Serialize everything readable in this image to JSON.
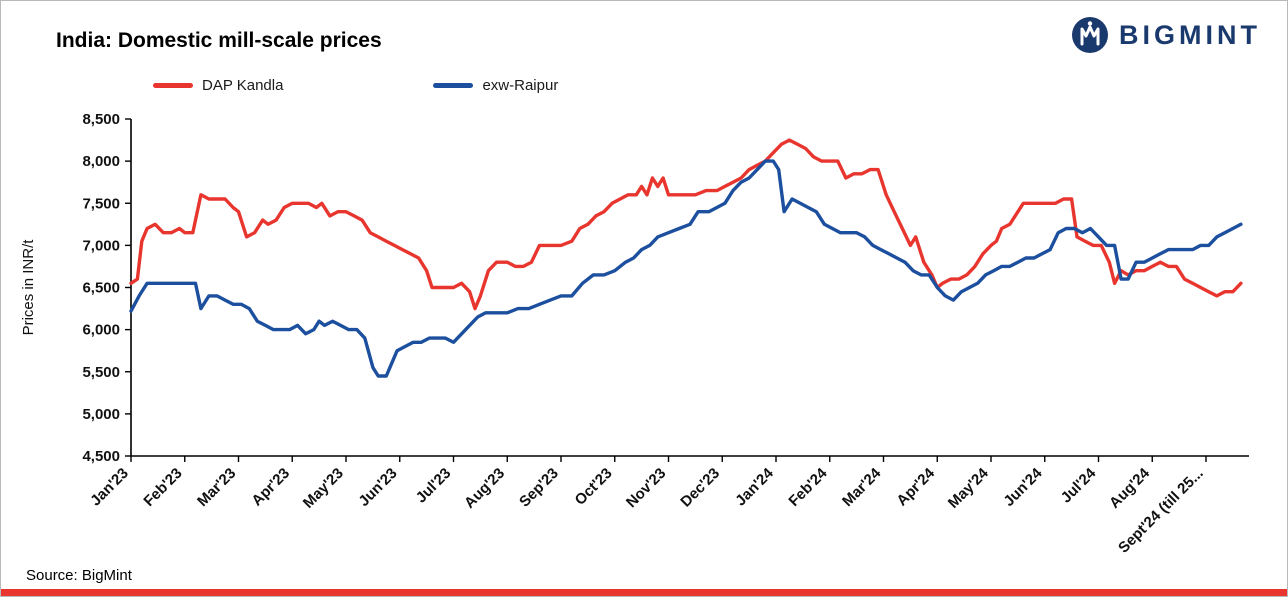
{
  "header": {
    "title": "India: Domestic mill-scale prices"
  },
  "logo": {
    "text": "BIGMINT",
    "color": "#1a3a6e",
    "icon": "bigmint-globe-icon"
  },
  "footer": {
    "source": "Source: BigMint"
  },
  "colors": {
    "dap_red": "#e8352e",
    "raipur_blue": "#1c4f9e",
    "bottom_bar": "#e8352e",
    "axis": "#000000"
  },
  "chart_data": {
    "type": "line",
    "title": "India: Domestic mill-scale prices",
    "xlabel": "",
    "ylabel": "Prices in INR/t",
    "ylim": [
      4500,
      8500
    ],
    "ytick_step": 500,
    "ytick_labels": [
      "4,500",
      "5,000",
      "5,500",
      "6,000",
      "6,500",
      "7,000",
      "7,500",
      "8,000",
      "8,500"
    ],
    "grid": false,
    "legend_position": "top",
    "categories": [
      "Jan'23",
      "Feb'23",
      "Mar'23",
      "Apr'23",
      "May'23",
      "Jun'23",
      "Jul'23",
      "Aug'23",
      "Sep'23",
      "Oct'23",
      "Nov'23",
      "Dec'23",
      "Jan'24",
      "Feb'24",
      "Mar'24",
      "Apr'24",
      "May'24",
      "Jun'24",
      "Jul'24",
      "Aug'24",
      "Sept'24 (till 25..."
    ],
    "x_unit": "months since Jan'23 (fractional = within-month date)",
    "x_axis_max": 20.8,
    "series": [
      {
        "name": "DAP Kandla",
        "color": "#e8352e",
        "points": [
          [
            0,
            6550
          ],
          [
            0.12,
            6600
          ],
          [
            0.2,
            7050
          ],
          [
            0.3,
            7200
          ],
          [
            0.45,
            7250
          ],
          [
            0.6,
            7150
          ],
          [
            0.75,
            7150
          ],
          [
            0.9,
            7200
          ],
          [
            1.0,
            7150
          ],
          [
            1.15,
            7150
          ],
          [
            1.3,
            7600
          ],
          [
            1.45,
            7550
          ],
          [
            1.6,
            7550
          ],
          [
            1.75,
            7550
          ],
          [
            1.9,
            7450
          ],
          [
            2.0,
            7400
          ],
          [
            2.15,
            7100
          ],
          [
            2.3,
            7150
          ],
          [
            2.45,
            7300
          ],
          [
            2.55,
            7250
          ],
          [
            2.7,
            7300
          ],
          [
            2.85,
            7450
          ],
          [
            3.0,
            7500
          ],
          [
            3.15,
            7500
          ],
          [
            3.3,
            7500
          ],
          [
            3.45,
            7450
          ],
          [
            3.55,
            7500
          ],
          [
            3.7,
            7350
          ],
          [
            3.85,
            7400
          ],
          [
            4.0,
            7400
          ],
          [
            4.15,
            7350
          ],
          [
            4.3,
            7300
          ],
          [
            4.45,
            7150
          ],
          [
            4.6,
            7100
          ],
          [
            4.75,
            7050
          ],
          [
            4.9,
            7000
          ],
          [
            5.05,
            6950
          ],
          [
            5.2,
            6900
          ],
          [
            5.35,
            6850
          ],
          [
            5.5,
            6700
          ],
          [
            5.6,
            6500
          ],
          [
            5.8,
            6500
          ],
          [
            6.0,
            6500
          ],
          [
            6.15,
            6550
          ],
          [
            6.3,
            6450
          ],
          [
            6.4,
            6250
          ],
          [
            6.5,
            6400
          ],
          [
            6.65,
            6700
          ],
          [
            6.8,
            6800
          ],
          [
            7.0,
            6800
          ],
          [
            7.15,
            6750
          ],
          [
            7.3,
            6750
          ],
          [
            7.45,
            6800
          ],
          [
            7.6,
            7000
          ],
          [
            7.8,
            7000
          ],
          [
            8.0,
            7000
          ],
          [
            8.2,
            7050
          ],
          [
            8.35,
            7200
          ],
          [
            8.5,
            7250
          ],
          [
            8.65,
            7350
          ],
          [
            8.8,
            7400
          ],
          [
            8.95,
            7500
          ],
          [
            9.1,
            7550
          ],
          [
            9.25,
            7600
          ],
          [
            9.4,
            7600
          ],
          [
            9.5,
            7700
          ],
          [
            9.6,
            7600
          ],
          [
            9.7,
            7800
          ],
          [
            9.8,
            7700
          ],
          [
            9.9,
            7800
          ],
          [
            10.0,
            7600
          ],
          [
            10.15,
            7600
          ],
          [
            10.3,
            7600
          ],
          [
            10.5,
            7600
          ],
          [
            10.7,
            7650
          ],
          [
            10.9,
            7650
          ],
          [
            11.05,
            7700
          ],
          [
            11.2,
            7750
          ],
          [
            11.35,
            7800
          ],
          [
            11.5,
            7900
          ],
          [
            11.65,
            7950
          ],
          [
            11.8,
            8000
          ],
          [
            11.95,
            8100
          ],
          [
            12.1,
            8200
          ],
          [
            12.25,
            8250
          ],
          [
            12.4,
            8200
          ],
          [
            12.55,
            8150
          ],
          [
            12.7,
            8050
          ],
          [
            12.85,
            8000
          ],
          [
            13.0,
            8000
          ],
          [
            13.15,
            8000
          ],
          [
            13.3,
            7800
          ],
          [
            13.45,
            7850
          ],
          [
            13.6,
            7850
          ],
          [
            13.75,
            7900
          ],
          [
            13.9,
            7900
          ],
          [
            14.05,
            7600
          ],
          [
            14.2,
            7400
          ],
          [
            14.35,
            7200
          ],
          [
            14.5,
            7000
          ],
          [
            14.6,
            7100
          ],
          [
            14.75,
            6800
          ],
          [
            14.9,
            6650
          ],
          [
            15.0,
            6500
          ],
          [
            15.1,
            6550
          ],
          [
            15.25,
            6600
          ],
          [
            15.4,
            6600
          ],
          [
            15.55,
            6650
          ],
          [
            15.7,
            6750
          ],
          [
            15.85,
            6900
          ],
          [
            16.0,
            7000
          ],
          [
            16.1,
            7050
          ],
          [
            16.2,
            7200
          ],
          [
            16.35,
            7250
          ],
          [
            16.5,
            7400
          ],
          [
            16.6,
            7500
          ],
          [
            16.75,
            7500
          ],
          [
            16.9,
            7500
          ],
          [
            17.05,
            7500
          ],
          [
            17.2,
            7500
          ],
          [
            17.35,
            7550
          ],
          [
            17.5,
            7550
          ],
          [
            17.6,
            7100
          ],
          [
            17.75,
            7050
          ],
          [
            17.9,
            7000
          ],
          [
            18.05,
            7000
          ],
          [
            18.2,
            6800
          ],
          [
            18.3,
            6550
          ],
          [
            18.42,
            6700
          ],
          [
            18.55,
            6650
          ],
          [
            18.7,
            6700
          ],
          [
            18.85,
            6700
          ],
          [
            19.0,
            6750
          ],
          [
            19.15,
            6800
          ],
          [
            19.3,
            6750
          ],
          [
            19.45,
            6750
          ],
          [
            19.6,
            6600
          ],
          [
            19.75,
            6550
          ],
          [
            19.9,
            6500
          ],
          [
            20.05,
            6450
          ],
          [
            20.2,
            6400
          ],
          [
            20.35,
            6450
          ],
          [
            20.5,
            6450
          ],
          [
            20.65,
            6550
          ]
        ]
      },
      {
        "name": "exw-Raipur",
        "color": "#1c4f9e",
        "points": [
          [
            0,
            6220
          ],
          [
            0.15,
            6400
          ],
          [
            0.3,
            6550
          ],
          [
            0.5,
            6550
          ],
          [
            0.7,
            6550
          ],
          [
            0.9,
            6550
          ],
          [
            1.05,
            6550
          ],
          [
            1.2,
            6550
          ],
          [
            1.3,
            6250
          ],
          [
            1.45,
            6400
          ],
          [
            1.6,
            6400
          ],
          [
            1.75,
            6350
          ],
          [
            1.9,
            6300
          ],
          [
            2.05,
            6300
          ],
          [
            2.2,
            6250
          ],
          [
            2.35,
            6100
          ],
          [
            2.5,
            6050
          ],
          [
            2.65,
            6000
          ],
          [
            2.8,
            6000
          ],
          [
            2.95,
            6000
          ],
          [
            3.1,
            6050
          ],
          [
            3.25,
            5950
          ],
          [
            3.4,
            6000
          ],
          [
            3.5,
            6100
          ],
          [
            3.6,
            6050
          ],
          [
            3.75,
            6100
          ],
          [
            3.9,
            6050
          ],
          [
            4.05,
            6000
          ],
          [
            4.2,
            6000
          ],
          [
            4.35,
            5900
          ],
          [
            4.5,
            5550
          ],
          [
            4.6,
            5450
          ],
          [
            4.75,
            5450
          ],
          [
            4.85,
            5600
          ],
          [
            4.95,
            5750
          ],
          [
            5.1,
            5800
          ],
          [
            5.25,
            5850
          ],
          [
            5.4,
            5850
          ],
          [
            5.55,
            5900
          ],
          [
            5.7,
            5900
          ],
          [
            5.85,
            5900
          ],
          [
            6.0,
            5850
          ],
          [
            6.15,
            5950
          ],
          [
            6.3,
            6050
          ],
          [
            6.45,
            6150
          ],
          [
            6.6,
            6200
          ],
          [
            6.8,
            6200
          ],
          [
            7.0,
            6200
          ],
          [
            7.2,
            6250
          ],
          [
            7.4,
            6250
          ],
          [
            7.6,
            6300
          ],
          [
            7.8,
            6350
          ],
          [
            8.0,
            6400
          ],
          [
            8.2,
            6400
          ],
          [
            8.4,
            6550
          ],
          [
            8.6,
            6650
          ],
          [
            8.8,
            6650
          ],
          [
            9.0,
            6700
          ],
          [
            9.2,
            6800
          ],
          [
            9.35,
            6850
          ],
          [
            9.5,
            6950
          ],
          [
            9.65,
            7000
          ],
          [
            9.8,
            7100
          ],
          [
            10.0,
            7150
          ],
          [
            10.2,
            7200
          ],
          [
            10.4,
            7250
          ],
          [
            10.55,
            7400
          ],
          [
            10.75,
            7400
          ],
          [
            10.9,
            7450
          ],
          [
            11.05,
            7500
          ],
          [
            11.2,
            7650
          ],
          [
            11.35,
            7750
          ],
          [
            11.5,
            7800
          ],
          [
            11.65,
            7900
          ],
          [
            11.8,
            8000
          ],
          [
            11.95,
            8000
          ],
          [
            12.05,
            7900
          ],
          [
            12.15,
            7400
          ],
          [
            12.3,
            7550
          ],
          [
            12.45,
            7500
          ],
          [
            12.6,
            7450
          ],
          [
            12.75,
            7400
          ],
          [
            12.9,
            7250
          ],
          [
            13.05,
            7200
          ],
          [
            13.2,
            7150
          ],
          [
            13.35,
            7150
          ],
          [
            13.5,
            7150
          ],
          [
            13.65,
            7100
          ],
          [
            13.8,
            7000
          ],
          [
            13.95,
            6950
          ],
          [
            14.1,
            6900
          ],
          [
            14.25,
            6850
          ],
          [
            14.4,
            6800
          ],
          [
            14.55,
            6700
          ],
          [
            14.7,
            6650
          ],
          [
            14.85,
            6650
          ],
          [
            15.0,
            6500
          ],
          [
            15.15,
            6400
          ],
          [
            15.3,
            6350
          ],
          [
            15.45,
            6450
          ],
          [
            15.6,
            6500
          ],
          [
            15.75,
            6550
          ],
          [
            15.9,
            6650
          ],
          [
            16.05,
            6700
          ],
          [
            16.2,
            6750
          ],
          [
            16.35,
            6750
          ],
          [
            16.5,
            6800
          ],
          [
            16.65,
            6850
          ],
          [
            16.8,
            6850
          ],
          [
            16.95,
            6900
          ],
          [
            17.1,
            6950
          ],
          [
            17.25,
            7150
          ],
          [
            17.4,
            7200
          ],
          [
            17.55,
            7200
          ],
          [
            17.7,
            7150
          ],
          [
            17.85,
            7200
          ],
          [
            18.0,
            7100
          ],
          [
            18.15,
            7000
          ],
          [
            18.3,
            7000
          ],
          [
            18.42,
            6600
          ],
          [
            18.55,
            6600
          ],
          [
            18.7,
            6800
          ],
          [
            18.85,
            6800
          ],
          [
            19.0,
            6850
          ],
          [
            19.15,
            6900
          ],
          [
            19.3,
            6950
          ],
          [
            19.45,
            6950
          ],
          [
            19.6,
            6950
          ],
          [
            19.75,
            6950
          ],
          [
            19.9,
            7000
          ],
          [
            20.05,
            7000
          ],
          [
            20.2,
            7100
          ],
          [
            20.35,
            7150
          ],
          [
            20.5,
            7200
          ],
          [
            20.65,
            7250
          ]
        ]
      }
    ]
  }
}
